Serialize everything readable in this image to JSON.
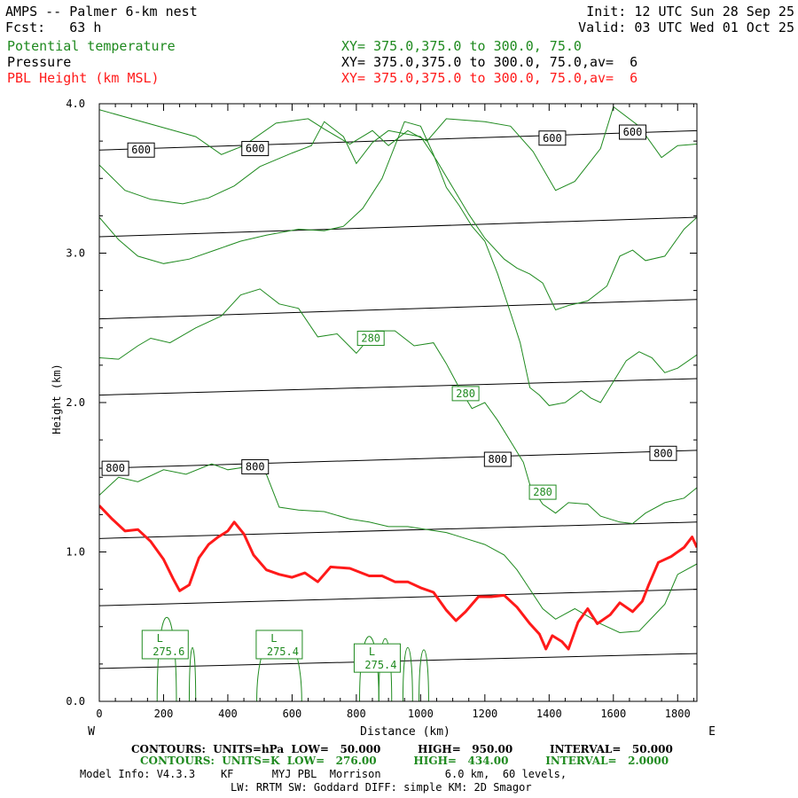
{
  "header": {
    "title": "AMPS -- Palmer 6-km nest",
    "fcst": "Fcst:   63 h",
    "init": "Init: 12 UTC Sun 28 Sep 25",
    "valid": "Valid: 03 UTC Wed 01 Oct 25",
    "fields": [
      {
        "name": "Potential temperature",
        "xy": "XY= 375.0,375.0 to 300.0, 75.0",
        "color": "#1f8a1f"
      },
      {
        "name": "Pressure",
        "xy": "XY= 375.0,375.0 to 300.0, 75.0,av=  6",
        "color": "#000000"
      },
      {
        "name": "PBL Height (km MSL)",
        "xy": "XY= 375.0,375.0 to 300.0, 75.0,av=  6",
        "color": "#ff1a1a"
      }
    ]
  },
  "chart_data": {
    "type": "line",
    "xlabel": "Distance (km)",
    "ylabel": "Height (km)",
    "xlim": [
      0,
      1860
    ],
    "ylim": [
      0,
      4.0
    ],
    "x_ticks": [
      0,
      200,
      400,
      600,
      800,
      1000,
      1200,
      1400,
      1600,
      1800
    ],
    "y_ticks": [
      "0.0",
      "1.0",
      "2.0",
      "3.0",
      "4.0"
    ],
    "y_tick_values": [
      0,
      1,
      2,
      3,
      4
    ],
    "x_end_labels": {
      "left": "W",
      "right": "E"
    },
    "pressure_contours": [
      {
        "y0": 0.22,
        "y1": 0.32
      },
      {
        "y0": 0.64,
        "y1": 0.75
      },
      {
        "y0": 1.09,
        "y1": 1.2
      },
      {
        "y0": 1.56,
        "y1": 1.68
      },
      {
        "y0": 2.05,
        "y1": 2.16
      },
      {
        "y0": 2.56,
        "y1": 2.69
      },
      {
        "y0": 3.11,
        "y1": 3.24
      },
      {
        "y0": 3.69,
        "y1": 3.82
      }
    ],
    "pressure_labels": [
      {
        "text": "600",
        "x": 130,
        "y": 3.69
      },
      {
        "text": "600",
        "x": 485,
        "y": 3.7
      },
      {
        "text": "600",
        "x": 1410,
        "y": 3.77
      },
      {
        "text": "600",
        "x": 1660,
        "y": 3.81
      },
      {
        "text": "800",
        "x": 50,
        "y": 1.56
      },
      {
        "text": "800",
        "x": 485,
        "y": 1.57
      },
      {
        "text": "800",
        "x": 1240,
        "y": 1.62
      },
      {
        "text": "800",
        "x": 1755,
        "y": 1.66
      }
    ],
    "theta_labels": [
      {
        "text": "280",
        "x": 845,
        "y": 2.43
      },
      {
        "text": "280",
        "x": 1140,
        "y": 2.06
      },
      {
        "text": "280",
        "x": 1380,
        "y": 1.4
      }
    ],
    "low_labels": [
      {
        "line1": "L",
        "line2": "275.6",
        "x": 205,
        "y": 0.38
      },
      {
        "line1": "L",
        "line2": "275.4",
        "x": 560,
        "y": 0.38
      },
      {
        "line1": "L",
        "line2": "275.4",
        "x": 865,
        "y": 0.29
      }
    ],
    "theta_lines": [
      [
        [
          0,
          3.96
        ],
        [
          100,
          3.9
        ],
        [
          200,
          3.84
        ],
        [
          300,
          3.78
        ],
        [
          380,
          3.66
        ],
        [
          450,
          3.72
        ],
        [
          550,
          3.87
        ],
        [
          650,
          3.9
        ],
        [
          700,
          3.83
        ],
        [
          780,
          3.73
        ],
        [
          850,
          3.82
        ],
        [
          900,
          3.72
        ],
        [
          960,
          3.82
        ],
        [
          1020,
          3.75
        ],
        [
          1080,
          3.9
        ],
        [
          1200,
          3.88
        ],
        [
          1280,
          3.85
        ],
        [
          1350,
          3.68
        ],
        [
          1420,
          3.42
        ],
        [
          1480,
          3.48
        ],
        [
          1560,
          3.7
        ],
        [
          1600,
          3.98
        ],
        [
          1680,
          3.85
        ],
        [
          1750,
          3.64
        ],
        [
          1800,
          3.72
        ],
        [
          1860,
          3.73
        ]
      ],
      [
        [
          0,
          3.59
        ],
        [
          80,
          3.42
        ],
        [
          160,
          3.36
        ],
        [
          260,
          3.33
        ],
        [
          340,
          3.37
        ],
        [
          420,
          3.45
        ],
        [
          500,
          3.58
        ],
        [
          600,
          3.67
        ],
        [
          660,
          3.72
        ],
        [
          700,
          3.88
        ],
        [
          760,
          3.78
        ],
        [
          800,
          3.6
        ],
        [
          850,
          3.74
        ],
        [
          900,
          3.82
        ],
        [
          950,
          3.8
        ],
        [
          1000,
          3.78
        ],
        [
          1050,
          3.62
        ],
        [
          1100,
          3.44
        ],
        [
          1150,
          3.26
        ],
        [
          1200,
          3.1
        ],
        [
          1260,
          2.96
        ],
        [
          1300,
          2.9
        ],
        [
          1340,
          2.86
        ],
        [
          1380,
          2.8
        ],
        [
          1420,
          2.62
        ],
        [
          1460,
          2.65
        ],
        [
          1520,
          2.68
        ],
        [
          1580,
          2.78
        ],
        [
          1620,
          2.98
        ],
        [
          1660,
          3.02
        ],
        [
          1700,
          2.95
        ],
        [
          1760,
          2.98
        ],
        [
          1820,
          3.16
        ],
        [
          1860,
          3.24
        ]
      ],
      [
        [
          0,
          3.24
        ],
        [
          60,
          3.09
        ],
        [
          120,
          2.98
        ],
        [
          200,
          2.93
        ],
        [
          280,
          2.96
        ],
        [
          360,
          3.02
        ],
        [
          440,
          3.08
        ],
        [
          520,
          3.12
        ],
        [
          620,
          3.16
        ],
        [
          700,
          3.15
        ],
        [
          760,
          3.18
        ],
        [
          820,
          3.3
        ],
        [
          880,
          3.5
        ],
        [
          950,
          3.88
        ],
        [
          1000,
          3.85
        ],
        [
          1040,
          3.66
        ],
        [
          1080,
          3.44
        ],
        [
          1120,
          3.32
        ],
        [
          1160,
          3.18
        ],
        [
          1200,
          3.08
        ],
        [
          1240,
          2.86
        ],
        [
          1280,
          2.6
        ],
        [
          1310,
          2.4
        ],
        [
          1340,
          2.1
        ],
        [
          1370,
          2.05
        ],
        [
          1400,
          1.98
        ],
        [
          1450,
          2.0
        ],
        [
          1500,
          2.08
        ],
        [
          1530,
          2.03
        ],
        [
          1560,
          2.0
        ],
        [
          1600,
          2.14
        ],
        [
          1640,
          2.28
        ],
        [
          1680,
          2.34
        ],
        [
          1720,
          2.3
        ],
        [
          1760,
          2.2
        ],
        [
          1800,
          2.23
        ],
        [
          1860,
          2.32
        ]
      ],
      [
        [
          0,
          2.3
        ],
        [
          60,
          2.29
        ],
        [
          120,
          2.38
        ],
        [
          160,
          2.43
        ],
        [
          220,
          2.4
        ],
        [
          300,
          2.5
        ],
        [
          380,
          2.58
        ],
        [
          440,
          2.72
        ],
        [
          500,
          2.76
        ],
        [
          560,
          2.66
        ],
        [
          620,
          2.63
        ],
        [
          680,
          2.44
        ],
        [
          740,
          2.46
        ],
        [
          800,
          2.33
        ],
        [
          860,
          2.48
        ],
        [
          920,
          2.48
        ],
        [
          980,
          2.38
        ],
        [
          1040,
          2.4
        ],
        [
          1080,
          2.26
        ],
        [
          1120,
          2.1
        ],
        [
          1160,
          1.96
        ],
        [
          1200,
          2.0
        ],
        [
          1240,
          1.88
        ],
        [
          1280,
          1.74
        ],
        [
          1320,
          1.6
        ],
        [
          1340,
          1.45
        ],
        [
          1380,
          1.32
        ],
        [
          1420,
          1.26
        ],
        [
          1460,
          1.33
        ],
        [
          1520,
          1.32
        ],
        [
          1560,
          1.24
        ],
        [
          1620,
          1.2
        ],
        [
          1660,
          1.19
        ],
        [
          1700,
          1.26
        ],
        [
          1760,
          1.33
        ],
        [
          1820,
          1.36
        ],
        [
          1860,
          1.43
        ]
      ],
      [
        [
          0,
          1.38
        ],
        [
          60,
          1.5
        ],
        [
          120,
          1.47
        ],
        [
          200,
          1.55
        ],
        [
          270,
          1.52
        ],
        [
          350,
          1.59
        ],
        [
          400,
          1.55
        ],
        [
          460,
          1.57
        ],
        [
          520,
          1.52
        ],
        [
          560,
          1.3
        ],
        [
          620,
          1.28
        ],
        [
          700,
          1.27
        ],
        [
          780,
          1.22
        ],
        [
          840,
          1.2
        ],
        [
          900,
          1.17
        ],
        [
          960,
          1.17
        ],
        [
          1020,
          1.15
        ],
        [
          1080,
          1.13
        ],
        [
          1140,
          1.09
        ],
        [
          1200,
          1.05
        ],
        [
          1260,
          0.98
        ],
        [
          1300,
          0.88
        ],
        [
          1340,
          0.75
        ],
        [
          1380,
          0.62
        ],
        [
          1420,
          0.55
        ],
        [
          1480,
          0.62
        ],
        [
          1560,
          0.52
        ],
        [
          1620,
          0.46
        ],
        [
          1680,
          0.47
        ],
        [
          1720,
          0.56
        ],
        [
          1760,
          0.65
        ],
        [
          1800,
          0.85
        ],
        [
          1860,
          0.92
        ]
      ]
    ],
    "low_contours": [
      {
        "cx": 210,
        "w": 60,
        "top": 0.75
      },
      {
        "cx": 290,
        "w": 20,
        "top": 0.48
      },
      {
        "cx": 560,
        "w": 140,
        "top": 0.62
      },
      {
        "cx": 840,
        "w": 60,
        "top": 0.58
      },
      {
        "cx": 890,
        "w": 40,
        "top": 0.56
      },
      {
        "cx": 960,
        "w": 30,
        "top": 0.48
      },
      {
        "cx": 1010,
        "w": 30,
        "top": 0.46
      }
    ],
    "pbl_height": {
      "color": "#ff1a1a",
      "points": [
        [
          0,
          1.31
        ],
        [
          40,
          1.22
        ],
        [
          80,
          1.14
        ],
        [
          120,
          1.15
        ],
        [
          160,
          1.07
        ],
        [
          200,
          0.95
        ],
        [
          230,
          0.82
        ],
        [
          250,
          0.74
        ],
        [
          280,
          0.78
        ],
        [
          310,
          0.96
        ],
        [
          340,
          1.05
        ],
        [
          370,
          1.1
        ],
        [
          400,
          1.14
        ],
        [
          420,
          1.2
        ],
        [
          450,
          1.12
        ],
        [
          480,
          0.98
        ],
        [
          520,
          0.88
        ],
        [
          560,
          0.85
        ],
        [
          600,
          0.83
        ],
        [
          640,
          0.86
        ],
        [
          680,
          0.8
        ],
        [
          720,
          0.9
        ],
        [
          780,
          0.89
        ],
        [
          840,
          0.84
        ],
        [
          880,
          0.84
        ],
        [
          920,
          0.8
        ],
        [
          960,
          0.8
        ],
        [
          1000,
          0.76
        ],
        [
          1040,
          0.73
        ],
        [
          1080,
          0.61
        ],
        [
          1110,
          0.54
        ],
        [
          1140,
          0.6
        ],
        [
          1180,
          0.7
        ],
        [
          1220,
          0.7
        ],
        [
          1260,
          0.71
        ],
        [
          1300,
          0.63
        ],
        [
          1340,
          0.52
        ],
        [
          1370,
          0.45
        ],
        [
          1390,
          0.35
        ],
        [
          1410,
          0.44
        ],
        [
          1440,
          0.4
        ],
        [
          1460,
          0.35
        ],
        [
          1490,
          0.53
        ],
        [
          1520,
          0.62
        ],
        [
          1550,
          0.52
        ],
        [
          1590,
          0.58
        ],
        [
          1620,
          0.66
        ],
        [
          1660,
          0.6
        ],
        [
          1690,
          0.67
        ],
        [
          1710,
          0.78
        ],
        [
          1740,
          0.93
        ],
        [
          1780,
          0.97
        ],
        [
          1820,
          1.03
        ],
        [
          1845,
          1.1
        ],
        [
          1860,
          1.03
        ]
      ]
    },
    "grid": false
  },
  "footer": {
    "line1": "CONTOURS:  UNITS=hPa  LOW=   50.000          HIGH=   950.00          INTERVAL=   50.000",
    "line2": "CONTOURS:  UNITS=K  LOW=   276.00          HIGH=   434.00          INTERVAL=   2.0000",
    "line3": "Model Info: V4.3.3    KF      MYJ PBL  Morrison          6.0 km,  60 levels,",
    "line4": "LW: RRTM SW: Goddard DIFF: simple KM: 2D Smagor"
  }
}
